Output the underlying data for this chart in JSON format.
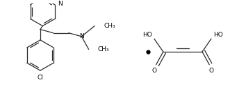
{
  "bg_color": "#ffffff",
  "line_color": "#2a2a2a",
  "text_color": "#000000",
  "font_size": 6.5,
  "line_width": 0.9,
  "figsize": [
    3.54,
    1.42
  ],
  "dpi": 100,
  "xlim": [
    0,
    10
  ],
  "ylim": [
    0,
    4
  ]
}
